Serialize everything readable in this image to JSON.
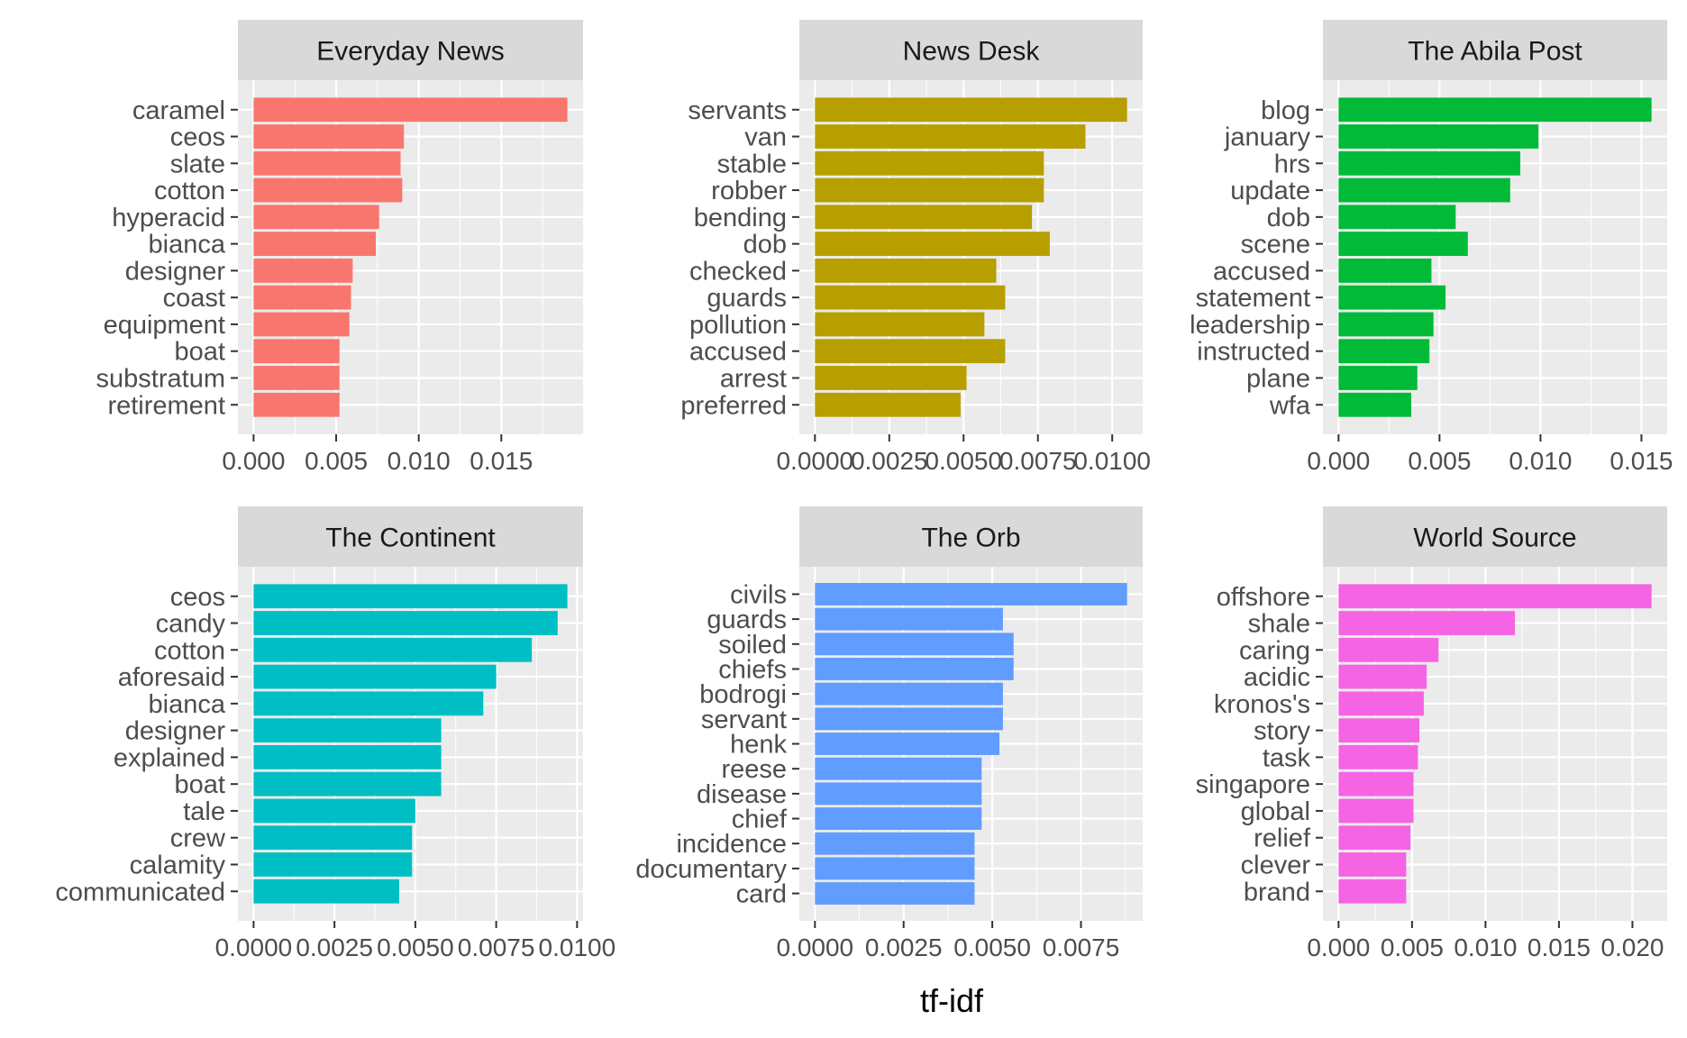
{
  "figure": {
    "xlabel": "tf-idf"
  },
  "colors": {
    "panel_background": "#EBEBEB",
    "strip_background": "#D9D9D9",
    "gridline": "#FFFFFF",
    "text": "#4D4D4D",
    "strip_text": "#1A1A1A"
  },
  "chart_data": [
    {
      "type": "bar",
      "orientation": "horizontal",
      "title": "Everyday News",
      "color": "#F8766D",
      "categories": [
        "caramel",
        "ceos",
        "slate",
        "cotton",
        "hyperacid",
        "bianca",
        "designer",
        "coast",
        "equipment",
        "boat",
        "substratum",
        "retirement"
      ],
      "values": [
        0.019,
        0.0091,
        0.0089,
        0.009,
        0.0076,
        0.0074,
        0.006,
        0.0059,
        0.0058,
        0.0052,
        0.0052,
        0.0052
      ],
      "xlim": [
        -0.00095,
        0.01995
      ],
      "xticks": [
        0.0,
        0.005,
        0.01,
        0.015
      ],
      "xtick_labels": [
        "0.000",
        "0.005",
        "0.010",
        "0.015"
      ],
      "grid": true
    },
    {
      "type": "bar",
      "orientation": "horizontal",
      "title": "News Desk",
      "color": "#B79F00",
      "categories": [
        "servants",
        "van",
        "stable",
        "robber",
        "bending",
        "dob",
        "checked",
        "guards",
        "pollution",
        "accused",
        "arrest",
        "preferred"
      ],
      "values": [
        0.0105,
        0.0091,
        0.0077,
        0.0077,
        0.0073,
        0.0079,
        0.0061,
        0.0064,
        0.0057,
        0.0064,
        0.0051,
        0.0049
      ],
      "xlim": [
        -0.000525,
        0.011025
      ],
      "xticks": [
        0.0,
        0.0025,
        0.005,
        0.0075,
        0.01
      ],
      "xtick_labels": [
        "0.0000",
        "0.0025",
        "0.0050",
        "0.0075",
        "0.0100"
      ],
      "grid": true
    },
    {
      "type": "bar",
      "orientation": "horizontal",
      "title": "The Abila Post",
      "color": "#00BA38",
      "categories": [
        "blog",
        "january",
        "hrs",
        "update",
        "dob",
        "scene",
        "accused",
        "statement",
        "leadership",
        "instructed",
        "plane",
        "wfa"
      ],
      "values": [
        0.0155,
        0.0099,
        0.009,
        0.0085,
        0.0058,
        0.0064,
        0.0046,
        0.0053,
        0.0047,
        0.0045,
        0.0039,
        0.0036
      ],
      "xlim": [
        -0.000775,
        0.016275
      ],
      "xticks": [
        0.0,
        0.005,
        0.01,
        0.015
      ],
      "xtick_labels": [
        "0.000",
        "0.005",
        "0.010",
        "0.015"
      ],
      "grid": true
    },
    {
      "type": "bar",
      "orientation": "horizontal",
      "title": "The Continent",
      "color": "#00BFC4",
      "categories": [
        "ceos",
        "candy",
        "cotton",
        "aforesaid",
        "bianca",
        "designer",
        "explained",
        "boat",
        "tale",
        "crew",
        "calamity",
        "communicated"
      ],
      "values": [
        0.0097,
        0.0094,
        0.0086,
        0.0075,
        0.0071,
        0.0058,
        0.0058,
        0.0058,
        0.005,
        0.0049,
        0.0049,
        0.0045
      ],
      "xlim": [
        -0.000485,
        0.010185
      ],
      "xticks": [
        0.0,
        0.0025,
        0.005,
        0.0075,
        0.01
      ],
      "xtick_labels": [
        "0.0000",
        "0.0025",
        "0.0050",
        "0.0075",
        "0.0100"
      ],
      "grid": true
    },
    {
      "type": "bar",
      "orientation": "horizontal",
      "title": "The Orb",
      "color": "#619CFF",
      "categories": [
        "civils",
        "guards",
        "soiled",
        "chiefs",
        "bodrogi",
        "servant",
        "henk",
        "reese",
        "disease",
        "chief",
        "incidence",
        "documentary",
        "card"
      ],
      "values": [
        0.0088,
        0.0053,
        0.0056,
        0.0056,
        0.0053,
        0.0053,
        0.0052,
        0.0047,
        0.0047,
        0.0047,
        0.0045,
        0.0045,
        0.0045
      ],
      "xlim": [
        -0.00044,
        0.00924
      ],
      "xticks": [
        0.0,
        0.0025,
        0.005,
        0.0075
      ],
      "xtick_labels": [
        "0.0000",
        "0.0025",
        "0.0050",
        "0.0075"
      ],
      "grid": true
    },
    {
      "type": "bar",
      "orientation": "horizontal",
      "title": "World Source",
      "color": "#F564E3",
      "categories": [
        "offshore",
        "shale",
        "caring",
        "acidic",
        "kronos's",
        "story",
        "task",
        "singapore",
        "global",
        "relief",
        "clever",
        "brand"
      ],
      "values": [
        0.0213,
        0.012,
        0.0068,
        0.006,
        0.0058,
        0.0055,
        0.0054,
        0.0051,
        0.0051,
        0.0049,
        0.0046,
        0.0046
      ],
      "xlim": [
        -0.001065,
        0.022365
      ],
      "xticks": [
        0.0,
        0.005,
        0.01,
        0.015,
        0.02
      ],
      "xtick_labels": [
        "0.000",
        "0.005",
        "0.010",
        "0.015",
        "0.020"
      ],
      "grid": true
    }
  ]
}
